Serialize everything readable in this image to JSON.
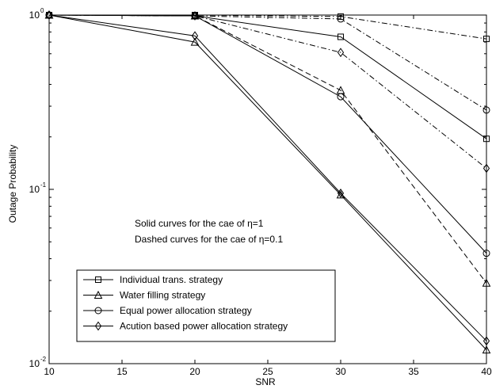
{
  "chart_data": {
    "type": "line",
    "title": "",
    "xlabel": "SNR",
    "ylabel": "Outage Probability",
    "x": [
      10,
      20,
      30,
      40
    ],
    "xlim": [
      10,
      40
    ],
    "ylim": [
      0.01,
      1
    ],
    "yscale": "log",
    "grid": false,
    "x_ticks": [
      "10",
      "15",
      "20",
      "25",
      "30",
      "35",
      "40"
    ],
    "y_ticks": [
      {
        "base": "10",
        "exp": "0"
      },
      {
        "base": "10",
        "exp": "-1"
      },
      {
        "base": "10",
        "exp": "-2"
      }
    ],
    "annotations": {
      "line1": "Solid curves for the cae of η=1",
      "line2": "Dashed curves for the cae of η=0.1"
    },
    "legend_position": "bottom-left",
    "series": [
      {
        "name": "Individual trans. strategy",
        "marker": "square",
        "style": "solid",
        "values": [
          1.0,
          0.99,
          0.75,
          0.195
        ]
      },
      {
        "name": "Individual trans. strategy",
        "marker": "square",
        "style": "dashdot",
        "legend": false,
        "values": [
          1.0,
          1.0,
          0.98,
          0.73
        ]
      },
      {
        "name": "Water filling strategy",
        "marker": "triangle",
        "style": "solid",
        "values": [
          1.0,
          0.7,
          0.093,
          0.012
        ]
      },
      {
        "name": "Water filling strategy",
        "marker": "triangle",
        "style": "dashed",
        "legend": false,
        "values": [
          1.0,
          0.99,
          0.37,
          0.029
        ]
      },
      {
        "name": "Equal power allocation strategy",
        "marker": "circle",
        "style": "solid",
        "values": [
          1.0,
          0.99,
          0.34,
          0.043
        ]
      },
      {
        "name": "Equal power allocation strategy",
        "marker": "circle",
        "style": "dashdot",
        "legend": false,
        "values": [
          1.0,
          0.99,
          0.95,
          0.285
        ]
      },
      {
        "name": "Acution based power allocation strategy",
        "marker": "diamond",
        "style": "solid",
        "values": [
          1.0,
          0.76,
          0.095,
          0.0135
        ]
      },
      {
        "name": "Acution based power allocation strategy",
        "marker": "diamond",
        "style": "dashdot",
        "legend": false,
        "values": [
          1.0,
          0.99,
          0.61,
          0.132
        ]
      }
    ]
  }
}
